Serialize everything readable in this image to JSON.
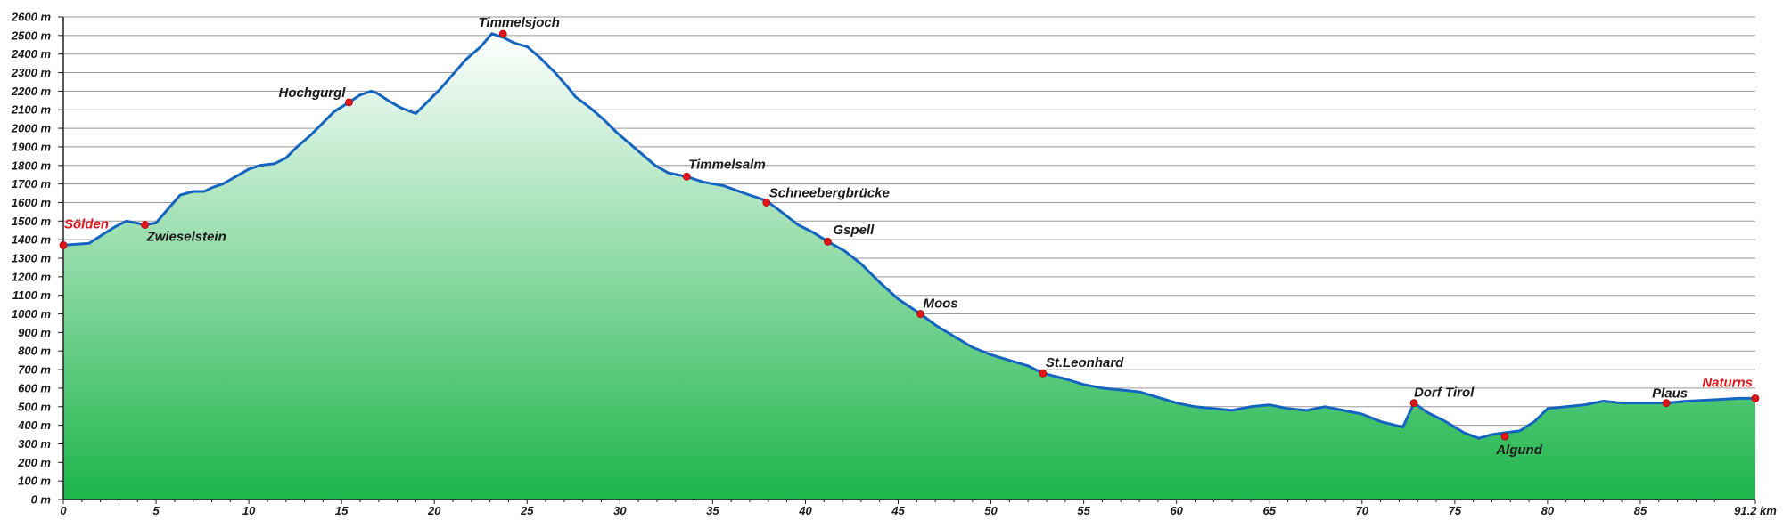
{
  "colors": {
    "grid": "#9a9a9a",
    "line": "#1565c0",
    "fill_top": "#ffffff",
    "fill_bottom": "#1cb54a",
    "point": "#e0161d",
    "highlight_label": "#e0161d"
  },
  "chart_data": {
    "type": "area",
    "title": "",
    "xlabel": "",
    "ylabel": "",
    "xlim": [
      0,
      91.2
    ],
    "ylim": [
      0,
      2600
    ],
    "grid": true,
    "x_ticks": [
      0,
      5,
      10,
      15,
      20,
      25,
      30,
      35,
      40,
      45,
      50,
      55,
      60,
      65,
      70,
      75,
      80,
      85,
      91.2
    ],
    "x_tick_labels": [
      "0",
      "5",
      "10",
      "15",
      "20",
      "25",
      "30",
      "35",
      "40",
      "45",
      "50",
      "55",
      "60",
      "65",
      "70",
      "75",
      "80",
      "85",
      "91.2 km"
    ],
    "y_ticks": [
      0,
      100,
      200,
      300,
      400,
      500,
      600,
      700,
      800,
      900,
      1000,
      1100,
      1200,
      1300,
      1400,
      1500,
      1600,
      1700,
      1800,
      1900,
      2000,
      2100,
      2200,
      2300,
      2400,
      2500,
      2600
    ],
    "y_tick_labels": [
      "0 m",
      "100 m",
      "200 m",
      "300 m",
      "400 m",
      "500 m",
      "600 m",
      "700 m",
      "800 m",
      "900 m",
      "1000 m",
      "1100 m",
      "1200 m",
      "1300 m",
      "1400 m",
      "1500 m",
      "1600 m",
      "1700 m",
      "1800 m",
      "1900 m",
      "2000 m",
      "2100 m",
      "2200 m",
      "2300 m",
      "2400 m",
      "2500 m",
      "2600 m"
    ],
    "profile": {
      "x": [
        0,
        1.4,
        2,
        2.8,
        3.4,
        4.4,
        5,
        5.6,
        6.3,
        7,
        7.6,
        8,
        8.6,
        9.3,
        10,
        10.6,
        11.4,
        12,
        12.6,
        13.3,
        14,
        14.6,
        15.4,
        16,
        16.6,
        16.9,
        17.5,
        18.2,
        19,
        19.6,
        20.3,
        21,
        21.7,
        22.5,
        23.1,
        23.7,
        24.3,
        25,
        25.7,
        26.5,
        27.2,
        27.6,
        28.4,
        29.1,
        29.8,
        30.5,
        31.2,
        31.9,
        32.6,
        33.6,
        34.5,
        35.6,
        36.7,
        37.9,
        38.7,
        39.6,
        40.4,
        41.2,
        42.1,
        43,
        44,
        45,
        46.2,
        47,
        48,
        49,
        50,
        51,
        52,
        52.8,
        54,
        55,
        56,
        57,
        58,
        59,
        60,
        61,
        62,
        63,
        64,
        65,
        66,
        67,
        68,
        69,
        70,
        71,
        72.2,
        72.8,
        73.5,
        74.5,
        75.5,
        76.3,
        77,
        77.7,
        78.5,
        79.3,
        80,
        81,
        82,
        83,
        84,
        85,
        86.4,
        87.5,
        88.5,
        89.5,
        90.3,
        91.2
      ],
      "y": [
        1370,
        1380,
        1420,
        1470,
        1500,
        1480,
        1490,
        1560,
        1640,
        1660,
        1660,
        1680,
        1700,
        1740,
        1780,
        1800,
        1810,
        1840,
        1900,
        1960,
        2030,
        2090,
        2140,
        2180,
        2200,
        2190,
        2150,
        2110,
        2080,
        2140,
        2210,
        2290,
        2370,
        2440,
        2510,
        2490,
        2460,
        2440,
        2380,
        2300,
        2220,
        2170,
        2110,
        2050,
        1980,
        1920,
        1860,
        1800,
        1760,
        1740,
        1710,
        1690,
        1650,
        1610,
        1550,
        1480,
        1440,
        1390,
        1340,
        1270,
        1170,
        1080,
        1000,
        940,
        880,
        820,
        780,
        750,
        720,
        680,
        650,
        620,
        600,
        590,
        580,
        550,
        520,
        500,
        490,
        480,
        500,
        510,
        490,
        480,
        500,
        480,
        460,
        420,
        390,
        520,
        470,
        420,
        360,
        330,
        350,
        360,
        370,
        420,
        490,
        500,
        510,
        530,
        520,
        520,
        520,
        530,
        535,
        540,
        545,
        545
      ]
    },
    "annotations": [
      {
        "label": "Sölden",
        "x": 0,
        "y": 1370,
        "highlight": true
      },
      {
        "label": "Zwieselstein",
        "x": 4.4,
        "y": 1480,
        "highlight": false
      },
      {
        "label": "Hochgurgl",
        "x": 15.4,
        "y": 2140,
        "highlight": false
      },
      {
        "label": "Timmelsjoch",
        "x": 23.7,
        "y": 2509,
        "highlight": false
      },
      {
        "label": "Timmelsalm",
        "x": 33.6,
        "y": 1740,
        "highlight": false
      },
      {
        "label": "Schneebergbrücke",
        "x": 37.9,
        "y": 1600,
        "highlight": false
      },
      {
        "label": "Gspell",
        "x": 41.2,
        "y": 1390,
        "highlight": false
      },
      {
        "label": "Moos",
        "x": 46.2,
        "y": 1000,
        "highlight": false
      },
      {
        "label": "St.Leonhard",
        "x": 52.8,
        "y": 680,
        "highlight": false
      },
      {
        "label": "Dorf Tirol",
        "x": 72.8,
        "y": 520,
        "highlight": false
      },
      {
        "label": "Algund",
        "x": 77.7,
        "y": 340,
        "highlight": false
      },
      {
        "label": "Plaus",
        "x": 86.4,
        "y": 520,
        "highlight": false
      },
      {
        "label": "Naturns",
        "x": 91.2,
        "y": 545,
        "highlight": true
      }
    ]
  }
}
